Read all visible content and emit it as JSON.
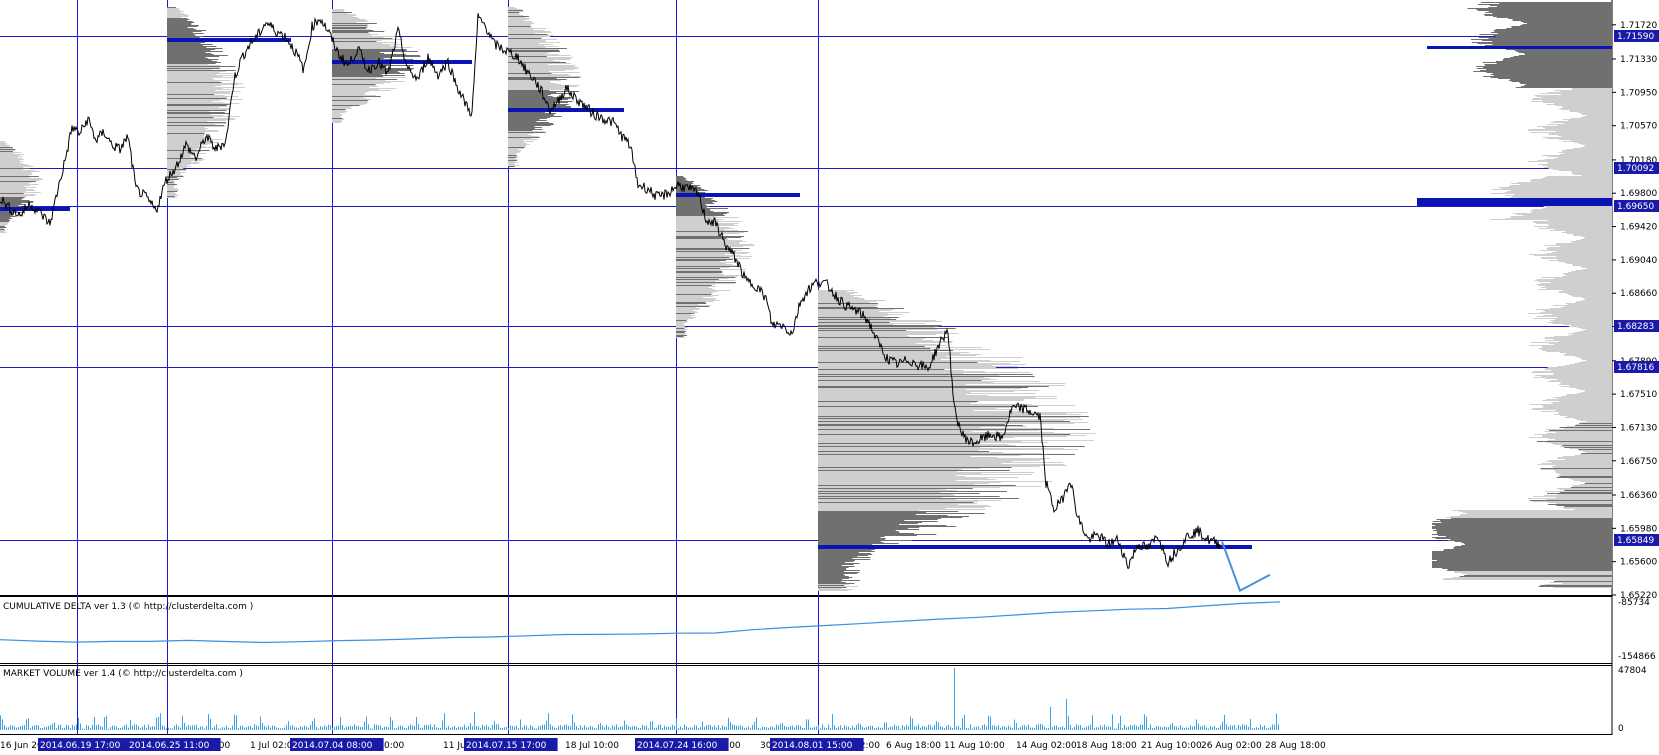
{
  "indicators": {
    "cumulative_delta": {
      "title": "CUMULATIVE DELTA ver 1.3 (© http://clusterdelta.com )",
      "max_label": "-85734",
      "min_label": "-154866"
    },
    "market_volume": {
      "title": "MARKET VOLUME ver 1.4 (© http://clusterdelta.com )",
      "max_label": "47804",
      "min_label": "0"
    }
  },
  "colors": {
    "grid_line": "#1a1acc",
    "price_line": "#000000",
    "highlight_bg": "#1a1aa8",
    "profile_dark": "#707070",
    "profile_light": "#cfcfcf",
    "profile_poc": "#0a14b4",
    "delta_line": "#3d8fe0",
    "volume_bar": "#3da3e8",
    "projection_line": "#4a90e2"
  },
  "chart_data": {
    "type": "line",
    "symbol_pair": "price chart with volume profiles",
    "y_axis": {
      "range": [
        1.6522,
        1.7198
      ],
      "tick_labels": [
        "1.71720",
        "1.71330",
        "1.70950",
        "1.70570",
        "1.70180",
        "1.69800",
        "1.69420",
        "1.69040",
        "1.68660",
        "1.68280",
        "1.67890",
        "1.67510",
        "1.67130",
        "1.66750",
        "1.66360",
        "1.65980",
        "1.65600",
        "1.65220"
      ],
      "highlighted_levels": [
        "1.71590",
        "1.70092",
        "1.69650",
        "1.68283",
        "1.67816",
        "1.65849"
      ]
    },
    "x_axis": {
      "tick_labels": [
        "16 Jun 20",
        "2",
        "un 10:00",
        "1 Jul 02:0",
        "8 Jul 10:00",
        "11 Jul",
        "18 Jul 10:00",
        "Jul 18:00",
        "30",
        "02:00",
        "6 Aug 18:00",
        "11 Aug 10:00",
        "14 Aug 02:00",
        "18 Aug 18:00",
        "21 Aug 10:00",
        "26 Aug 02:00",
        "28 Aug 18:00"
      ],
      "highlighted_dates": [
        "2014.06.19 17:00",
        "2014.06.25 11:00",
        "2014.07.04 08:00",
        "2014.07.15 17:00",
        "2014.07.24 16:00",
        "2014.08.01 15:00"
      ]
    },
    "series": [
      {
        "values": [
          [
            0,
            1.6975
          ],
          [
            10,
            1.6962
          ],
          [
            20,
            1.6955
          ],
          [
            30,
            1.6968
          ],
          [
            40,
            1.6958
          ],
          [
            50,
            1.6945
          ],
          [
            58,
            1.6985
          ],
          [
            66,
            1.7022
          ],
          [
            72,
            1.7055
          ],
          [
            80,
            1.7048
          ],
          [
            88,
            1.7065
          ],
          [
            96,
            1.704
          ],
          [
            104,
            1.705
          ],
          [
            112,
            1.7035
          ],
          [
            120,
            1.703
          ],
          [
            128,
            1.7045
          ],
          [
            136,
            1.6985
          ],
          [
            146,
            1.6975
          ],
          [
            156,
            1.696
          ],
          [
            166,
            1.6995
          ],
          [
            176,
            1.701
          ],
          [
            186,
            1.7035
          ],
          [
            196,
            1.702
          ],
          [
            206,
            1.7045
          ],
          [
            216,
            1.703
          ],
          [
            226,
            1.704
          ],
          [
            234,
            1.711
          ],
          [
            242,
            1.7135
          ],
          [
            250,
            1.715
          ],
          [
            258,
            1.716
          ],
          [
            266,
            1.7175
          ],
          [
            276,
            1.7165
          ],
          [
            286,
            1.7158
          ],
          [
            296,
            1.714
          ],
          [
            304,
            1.712
          ],
          [
            312,
            1.717
          ],
          [
            320,
            1.718
          ],
          [
            328,
            1.7165
          ],
          [
            338,
            1.714
          ],
          [
            348,
            1.7125
          ],
          [
            358,
            1.7145
          ],
          [
            368,
            1.712
          ],
          [
            378,
            1.713
          ],
          [
            388,
            1.7115
          ],
          [
            398,
            1.7165
          ],
          [
            408,
            1.712
          ],
          [
            418,
            1.711
          ],
          [
            428,
            1.7135
          ],
          [
            438,
            1.7115
          ],
          [
            448,
            1.713
          ],
          [
            456,
            1.7105
          ],
          [
            464,
            1.7085
          ],
          [
            472,
            1.707
          ],
          [
            478,
            1.718
          ],
          [
            486,
            1.717
          ],
          [
            494,
            1.715
          ],
          [
            502,
            1.7145
          ],
          [
            510,
            1.714
          ],
          [
            518,
            1.7135
          ],
          [
            526,
            1.712
          ],
          [
            534,
            1.711
          ],
          [
            542,
            1.7095
          ],
          [
            550,
            1.7075
          ],
          [
            558,
            1.7085
          ],
          [
            566,
            1.71
          ],
          [
            574,
            1.709
          ],
          [
            584,
            1.708
          ],
          [
            594,
            1.707
          ],
          [
            604,
            1.7065
          ],
          [
            614,
            1.706
          ],
          [
            622,
            1.7045
          ],
          [
            630,
            1.7035
          ],
          [
            638,
            1.699
          ],
          [
            648,
            1.6985
          ],
          [
            658,
            1.6975
          ],
          [
            668,
            1.698
          ],
          [
            678,
            1.699
          ],
          [
            688,
            1.6985
          ],
          [
            698,
            1.698
          ],
          [
            706,
            1.695
          ],
          [
            716,
            1.6945
          ],
          [
            726,
            1.692
          ],
          [
            736,
            1.6905
          ],
          [
            746,
            1.688
          ],
          [
            756,
            1.6875
          ],
          [
            766,
            1.686
          ],
          [
            772,
            1.683
          ],
          [
            782,
            1.683
          ],
          [
            792,
            1.682
          ],
          [
            800,
            1.6855
          ],
          [
            808,
            1.687
          ],
          [
            818,
            1.688
          ],
          [
            828,
            1.6875
          ],
          [
            838,
            1.686
          ],
          [
            848,
            1.685
          ],
          [
            858,
            1.6845
          ],
          [
            868,
            1.6835
          ],
          [
            878,
            1.681
          ],
          [
            888,
            1.679
          ],
          [
            898,
            1.6785
          ],
          [
            908,
            1.679
          ],
          [
            918,
            1.6785
          ],
          [
            928,
            1.678
          ],
          [
            938,
            1.6805
          ],
          [
            948,
            1.6825
          ],
          [
            954,
            1.6735
          ],
          [
            962,
            1.6705
          ],
          [
            972,
            1.6695
          ],
          [
            982,
            1.67
          ],
          [
            992,
            1.6705
          ],
          [
            1002,
            1.67
          ],
          [
            1012,
            1.6735
          ],
          [
            1022,
            1.6735
          ],
          [
            1032,
            1.673
          ],
          [
            1040,
            1.6725
          ],
          [
            1046,
            1.665
          ],
          [
            1054,
            1.662
          ],
          [
            1062,
            1.663
          ],
          [
            1070,
            1.6655
          ],
          [
            1078,
            1.661
          ],
          [
            1088,
            1.6585
          ],
          [
            1098,
            1.659
          ],
          [
            1108,
            1.658
          ],
          [
            1118,
            1.6585
          ],
          [
            1128,
            1.6555
          ],
          [
            1138,
            1.658
          ],
          [
            1148,
            1.6575
          ],
          [
            1158,
            1.659
          ],
          [
            1168,
            1.656
          ],
          [
            1178,
            1.6575
          ],
          [
            1188,
            1.659
          ],
          [
            1198,
            1.6595
          ],
          [
            1208,
            1.6585
          ],
          [
            1220,
            1.658
          ]
        ]
      },
      {
        "values": [
          [
            1222,
            1.6583
          ],
          [
            1240,
            1.6527
          ],
          [
            1270,
            1.6545
          ]
        ]
      }
    ],
    "cumulative_delta_series": [
      -133000,
      -134500,
      -136200,
      -135100,
      -134800,
      -133900,
      -135300,
      -136000,
      -135500,
      -134000,
      -133200,
      -132100,
      -130800,
      -129600,
      -128500,
      -127200,
      -126600,
      -126100,
      -125500,
      -124700,
      -120800,
      -118500,
      -116200,
      -113500,
      -110600,
      -108700,
      -106500,
      -103800,
      -100800,
      -98200,
      -97000,
      -95400,
      -92500,
      -90000,
      -88400
    ],
    "volume_spikes": [
      [
        954,
        47804
      ],
      [
        1066,
        24000
      ],
      [
        1050,
        18000
      ],
      [
        1112,
        12000
      ],
      [
        548,
        13000
      ],
      [
        475,
        14000
      ],
      [
        160,
        13000
      ],
      [
        314,
        9000
      ],
      [
        94,
        10000
      ],
      [
        182,
        11000
      ]
    ]
  }
}
